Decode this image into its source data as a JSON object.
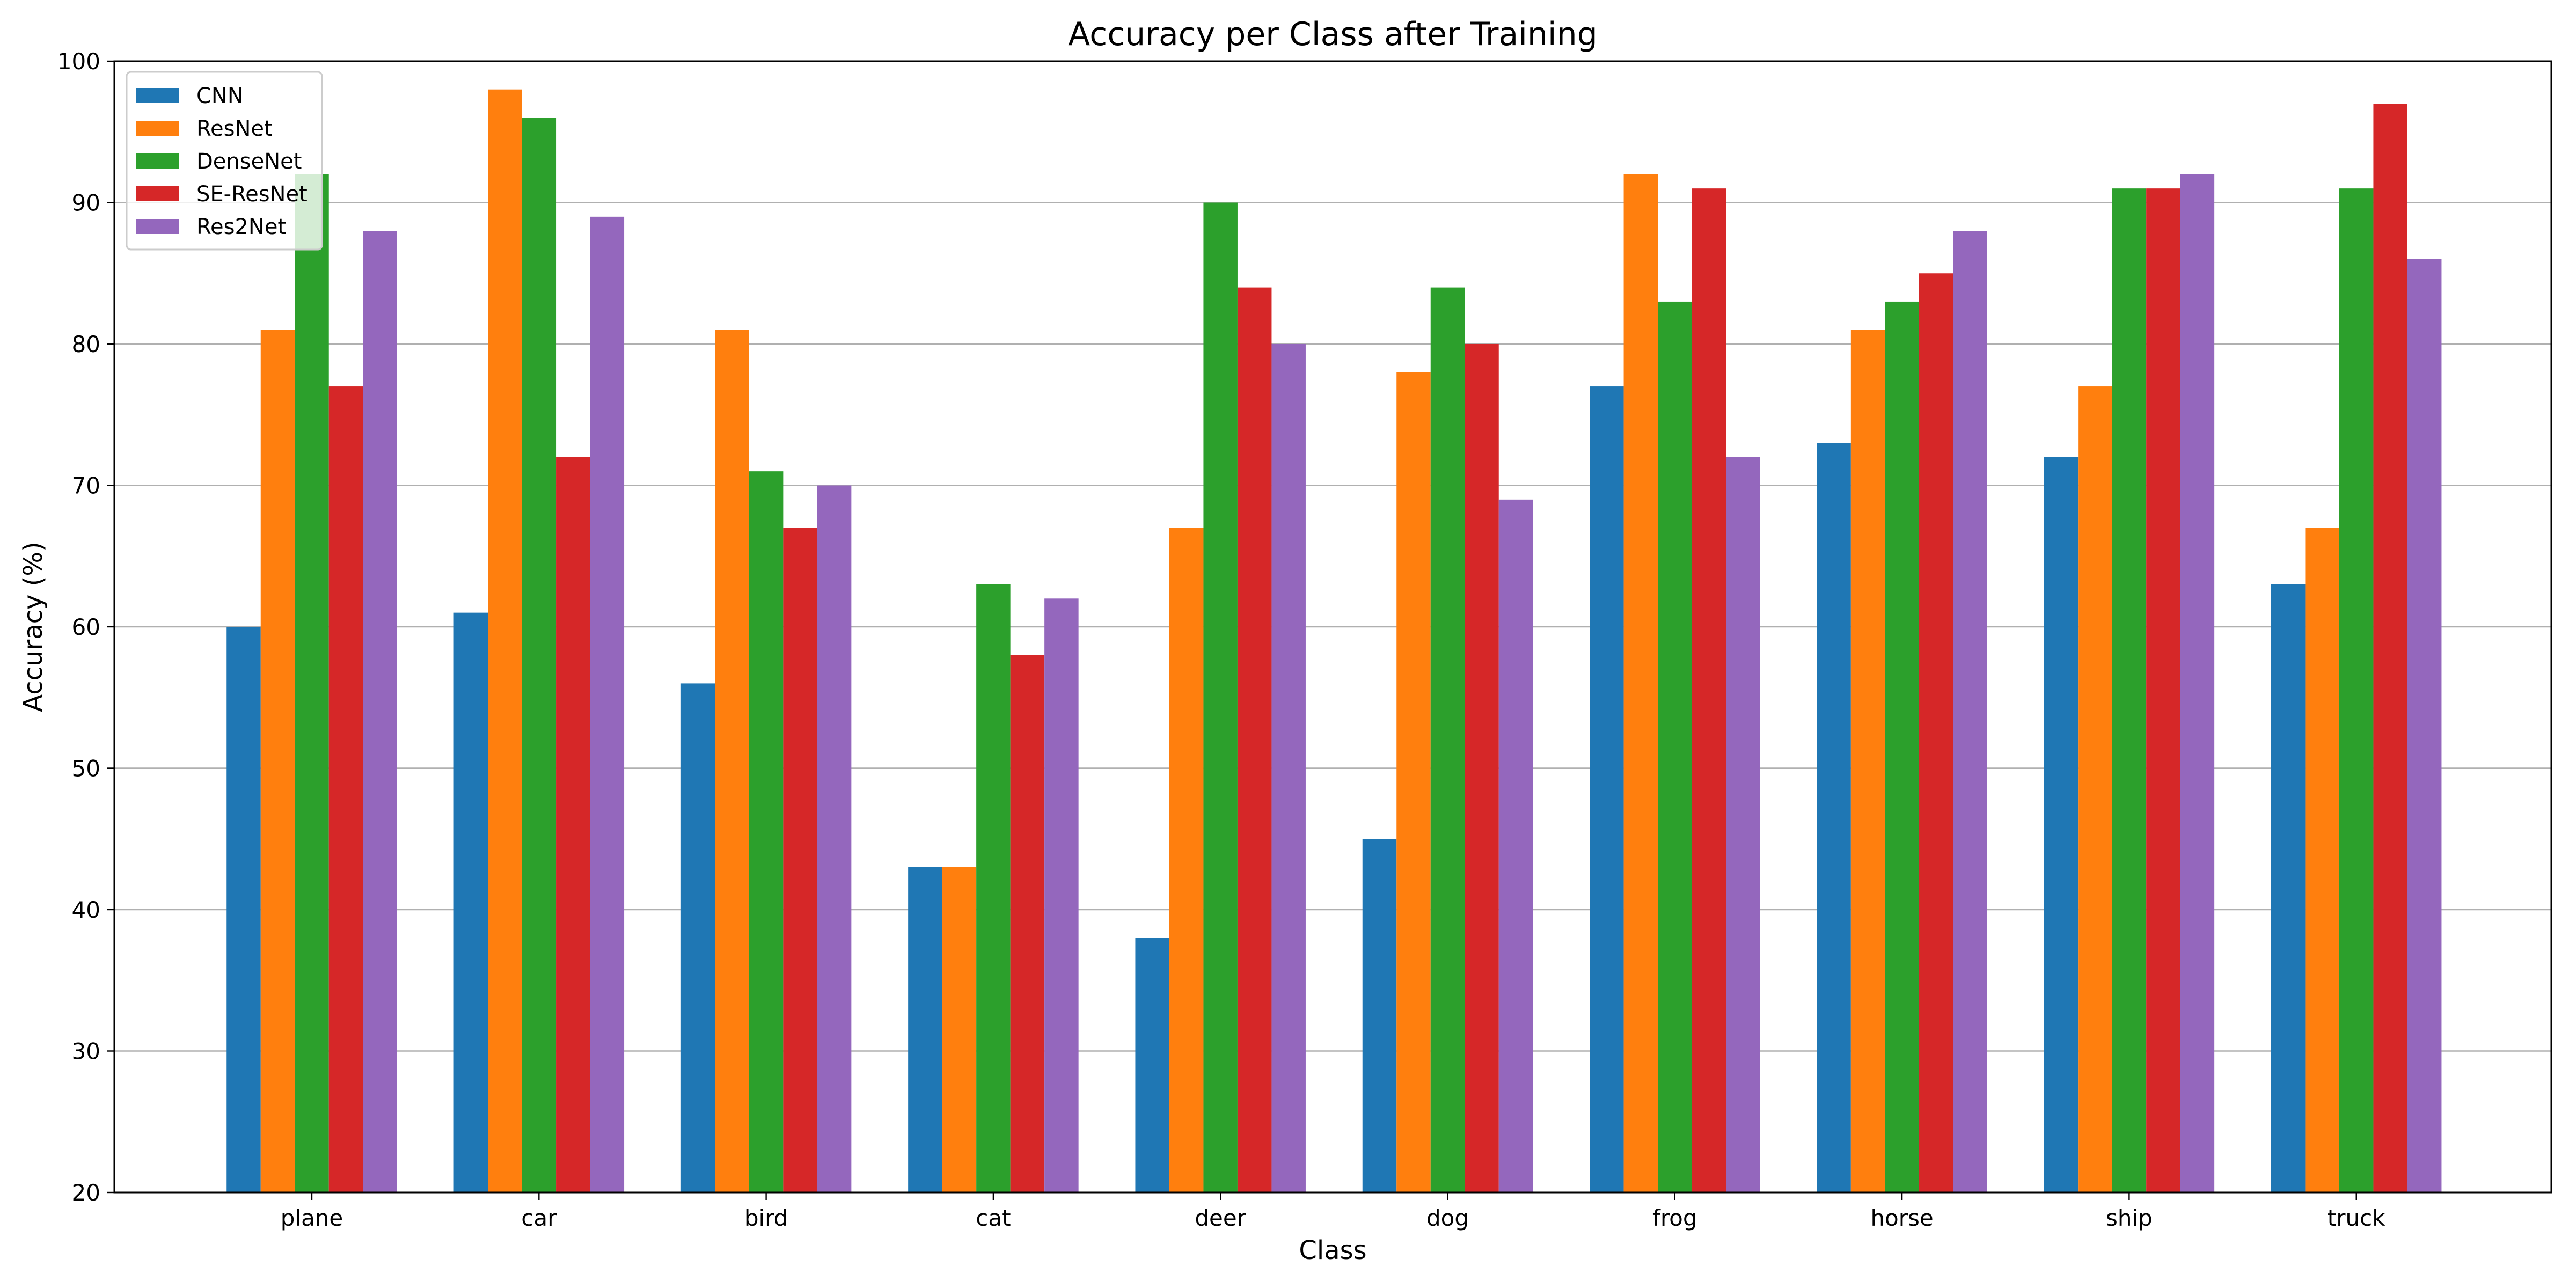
{
  "chart_data": {
    "type": "bar",
    "title": "Accuracy per Class after Training",
    "xlabel": "Class",
    "ylabel": "Accuracy (%)",
    "ylim": [
      20,
      100
    ],
    "yticks": [
      20,
      30,
      40,
      50,
      60,
      70,
      80,
      90,
      100
    ],
    "grid": "horizontal",
    "legend_position": "top-left",
    "categories": [
      "plane",
      "car",
      "bird",
      "cat",
      "deer",
      "dog",
      "frog",
      "horse",
      "ship",
      "truck"
    ],
    "series": [
      {
        "name": "CNN",
        "color": "#1f77b4",
        "values": [
          60,
          61,
          56,
          43,
          38,
          45,
          77,
          73,
          72,
          63
        ]
      },
      {
        "name": "ResNet",
        "color": "#ff7f0e",
        "values": [
          81,
          98,
          81,
          43,
          67,
          78,
          92,
          81,
          77,
          67
        ]
      },
      {
        "name": "DenseNet",
        "color": "#2ca02c",
        "values": [
          92,
          96,
          71,
          63,
          90,
          84,
          83,
          83,
          91,
          91
        ]
      },
      {
        "name": "SE-ResNet",
        "color": "#d62728",
        "values": [
          77,
          72,
          67,
          58,
          84,
          80,
          91,
          85,
          91,
          97
        ]
      },
      {
        "name": "Res2Net",
        "color": "#9467bd",
        "values": [
          88,
          89,
          70,
          62,
          80,
          69,
          72,
          88,
          92,
          86
        ]
      }
    ]
  }
}
